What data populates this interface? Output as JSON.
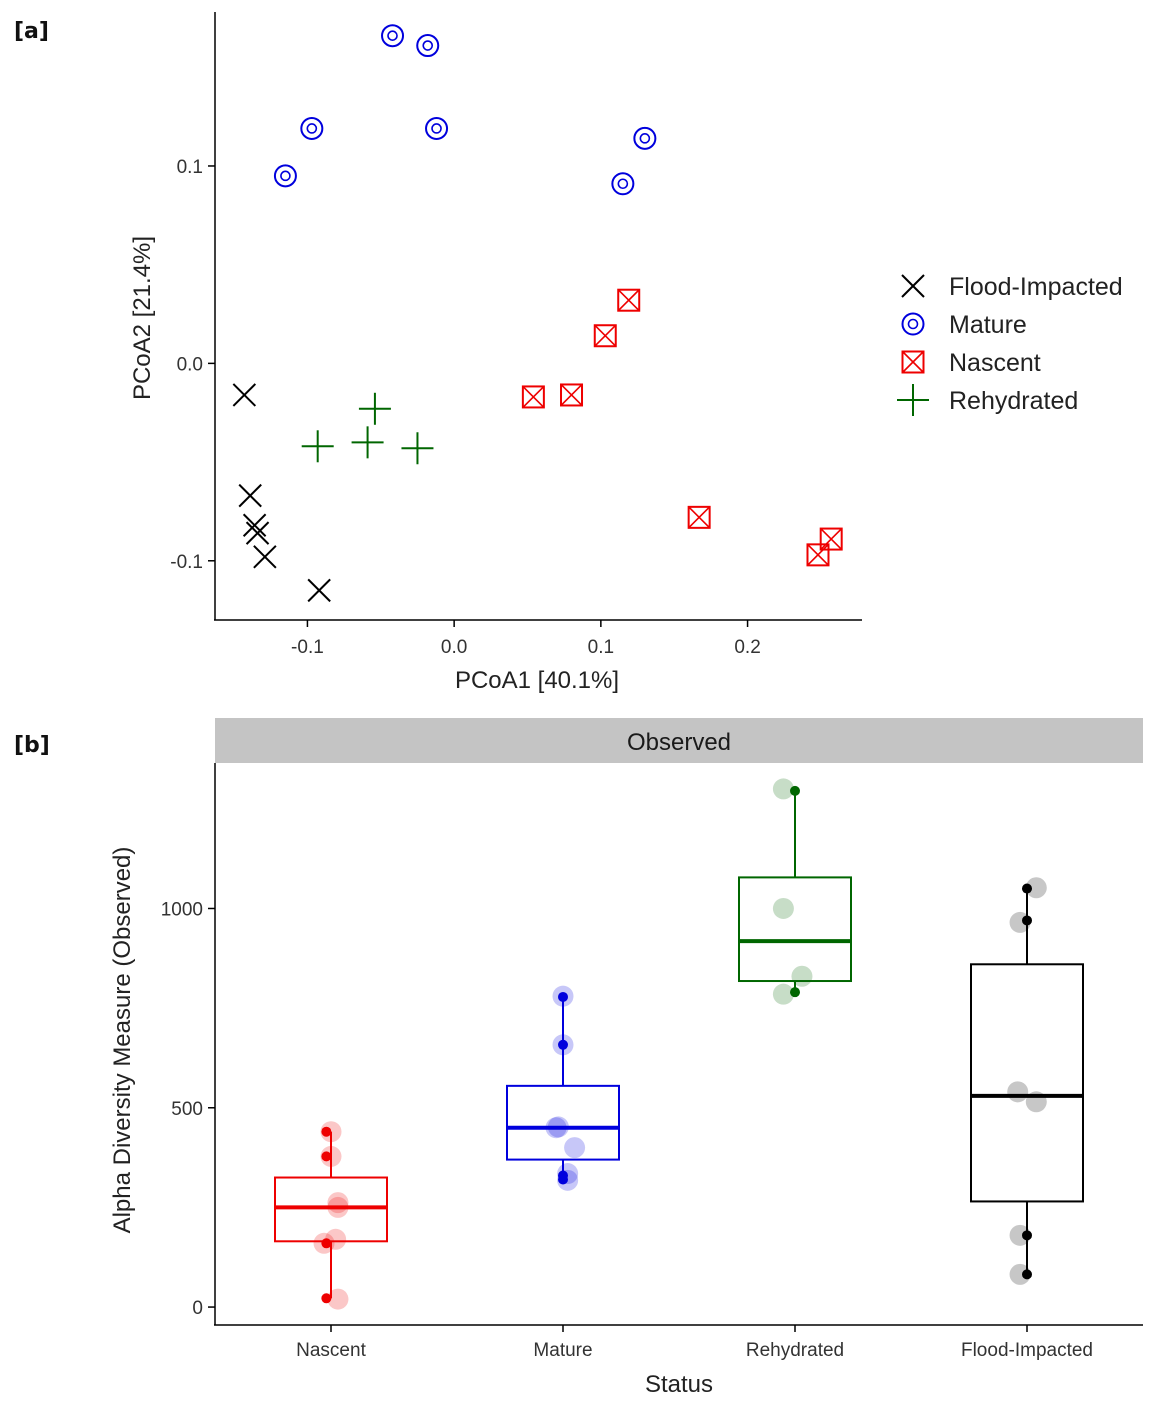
{
  "panel_a_label": "[a]",
  "panel_b_label": "[b]",
  "chart_data": [
    {
      "type": "scatter",
      "title": "",
      "xlabel": "PCoA1 [40.1%]",
      "ylabel": "PCoA2 [21.4%]",
      "xlim": [
        -0.163,
        0.278
      ],
      "ylim": [
        -0.13,
        0.178
      ],
      "xticks": [
        -0.1,
        0.0,
        0.1,
        0.2
      ],
      "xtick_labels": [
        "-0.1",
        "0.0",
        "0.1",
        "0.2"
      ],
      "yticks": [
        -0.1,
        0.0,
        0.1
      ],
      "ytick_labels": [
        "-0.1",
        "0.0",
        "0.1"
      ],
      "legend_position": "right",
      "series": [
        {
          "name": "Flood-Impacted",
          "marker": "x",
          "color": "#000000",
          "points": [
            [
              -0.143,
              -0.016
            ],
            [
              -0.139,
              -0.067
            ],
            [
              -0.136,
              -0.082
            ],
            [
              -0.134,
              -0.086
            ],
            [
              -0.129,
              -0.098
            ],
            [
              -0.092,
              -0.115
            ]
          ]
        },
        {
          "name": "Mature",
          "marker": "circle-dot",
          "color": "#0000dd",
          "points": [
            [
              -0.115,
              0.095
            ],
            [
              -0.097,
              0.119
            ],
            [
              -0.042,
              0.166
            ],
            [
              -0.018,
              0.161
            ],
            [
              -0.012,
              0.119
            ],
            [
              0.115,
              0.091
            ],
            [
              0.13,
              0.114
            ]
          ]
        },
        {
          "name": "Nascent",
          "marker": "square-x",
          "color": "#ee0000",
          "points": [
            [
              0.054,
              -0.017
            ],
            [
              0.08,
              -0.016
            ],
            [
              0.103,
              0.014
            ],
            [
              0.119,
              0.032
            ],
            [
              0.167,
              -0.078
            ],
            [
              0.248,
              -0.097
            ],
            [
              0.257,
              -0.089
            ]
          ]
        },
        {
          "name": "Rehydrated",
          "marker": "plus",
          "color": "#006600",
          "points": [
            [
              -0.093,
              -0.042
            ],
            [
              -0.059,
              -0.04
            ],
            [
              -0.054,
              -0.023
            ],
            [
              -0.025,
              -0.043
            ]
          ]
        }
      ]
    },
    {
      "type": "box",
      "title": "",
      "strip_label": "Observed",
      "xlabel": "Status",
      "ylabel": "Alpha Diversity Measure (Observed)",
      "ylim": [
        -45,
        1365
      ],
      "yticks": [
        0,
        500,
        1000
      ],
      "ytick_labels": [
        "0",
        "500",
        "1000"
      ],
      "categories": [
        "Nascent",
        "Mature",
        "Rehydrated",
        "Flood-Impacted"
      ],
      "groups": [
        {
          "name": "Nascent",
          "color": "#ee0000",
          "q1": 165,
          "median": 250,
          "q3": 325,
          "whisker_low": 22,
          "whisker_high": 440,
          "points": [
            [
              -0.02,
              22
            ],
            [
              -0.02,
              160
            ],
            [
              -0.02,
              378
            ],
            [
              -0.02,
              440
            ]
          ],
          "jitter_points": [
            [
              0.03,
              20
            ],
            [
              0.02,
              170
            ],
            [
              -0.03,
              160
            ],
            [
              0.03,
              262
            ],
            [
              0.03,
              250
            ],
            [
              0.0,
              378
            ],
            [
              0.0,
              440
            ]
          ]
        },
        {
          "name": "Mature",
          "color": "#0000dd",
          "q1": 370,
          "median": 450,
          "q3": 555,
          "whisker_low": 320,
          "whisker_high": 778,
          "points": [
            [
              0.0,
              320
            ],
            [
              0.0,
              330
            ],
            [
              0.0,
              658
            ],
            [
              0.0,
              778
            ]
          ],
          "jitter_points": [
            [
              0.02,
              318
            ],
            [
              0.02,
              335
            ],
            [
              0.05,
              400
            ],
            [
              -0.03,
              450
            ],
            [
              -0.02,
              452
            ],
            [
              0.0,
              658
            ],
            [
              0.0,
              780
            ]
          ]
        },
        {
          "name": "Rehydrated",
          "color": "#006600",
          "q1": 818,
          "median": 918,
          "q3": 1078,
          "whisker_low": 790,
          "whisker_high": 1295,
          "points": [
            [
              0.0,
              790
            ],
            [
              0.0,
              1295
            ]
          ],
          "jitter_points": [
            [
              -0.05,
              785
            ],
            [
              0.03,
              830
            ],
            [
              -0.05,
              1000
            ],
            [
              -0.05,
              1300
            ]
          ]
        },
        {
          "name": "Flood-Impacted",
          "color": "#000000",
          "q1": 265,
          "median": 530,
          "q3": 860,
          "whisker_low": 82,
          "whisker_high": 1050,
          "points": [
            [
              0.0,
              82
            ],
            [
              0.0,
              180
            ],
            [
              0.0,
              970
            ],
            [
              0.0,
              1050
            ]
          ],
          "jitter_points": [
            [
              -0.03,
              82
            ],
            [
              -0.03,
              180
            ],
            [
              -0.04,
              540
            ],
            [
              0.04,
              515
            ],
            [
              -0.03,
              965
            ],
            [
              0.04,
              1052
            ]
          ]
        }
      ]
    }
  ]
}
